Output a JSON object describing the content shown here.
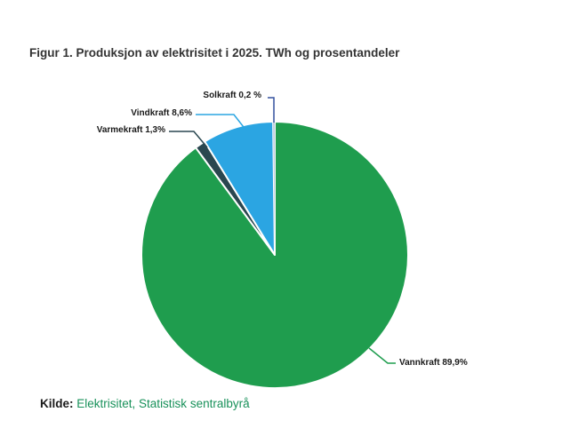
{
  "figure": {
    "title": "Figur 1. Produksjon av elektrisitet i 2025. TWh og prosentandeler",
    "source_label": "Kilde:",
    "source_text": "Elektrisitet, Statistisk sentralbyrå"
  },
  "colors": {
    "background": "#ffffff",
    "title_text": "#333333",
    "label_text": "#1a1a1a",
    "source_link": "#18915a",
    "separator": "#ffffff"
  },
  "chart_data": {
    "type": "pie",
    "title": "Figur 1. Produksjon av elektrisitet i 2025. TWh og prosentandeler",
    "unit": "%",
    "direction": "clockwise",
    "start_angle_deg": 0,
    "legend": "none",
    "slices": [
      {
        "name": "Vannkraft",
        "value": 89.9,
        "label": "Vannkraft 89,9%",
        "color": "#1f9d4e"
      },
      {
        "name": "Varmekraft",
        "value": 1.3,
        "label": "Varmekraft 1,3%",
        "color": "#2a4750"
      },
      {
        "name": "Vindkraft",
        "value": 8.6,
        "label": "Vindkraft 8,6%",
        "color": "#2ba5e2"
      },
      {
        "name": "Solkraft",
        "value": 0.2,
        "label": "Solkraft 0,2 %",
        "color": "#bccade",
        "leader_color": "#33519e"
      }
    ]
  }
}
